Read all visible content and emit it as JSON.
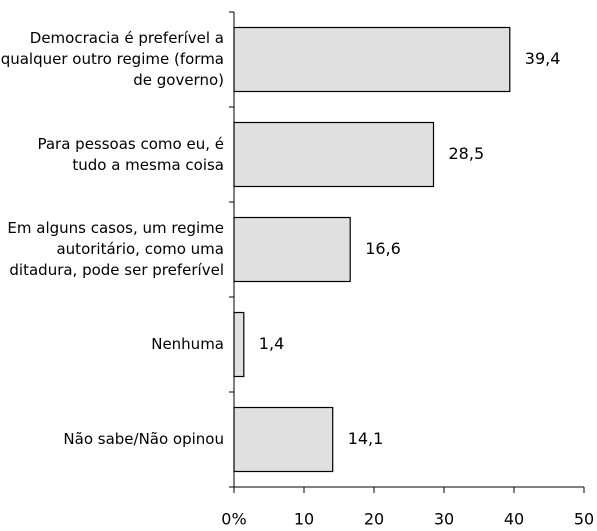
{
  "chart_data": {
    "type": "bar",
    "orientation": "horizontal",
    "categories": [
      "Democracia é preferível a qualquer outro regime (forma de governo)",
      "Para pessoas como eu, é tudo a mesma coisa",
      "Em alguns casos, um regime autoritário, como uma ditadura, pode ser preferível",
      "Nenhuma",
      "Não sabe/Não opinou"
    ],
    "values": [
      39.4,
      28.5,
      16.6,
      1.4,
      14.1
    ],
    "value_labels": [
      "39,4",
      "28,5",
      "16,6",
      "1,4",
      "14,1"
    ],
    "color": "#e0e0e0",
    "xlim": [
      0,
      50
    ],
    "xticks": [
      {
        "value": 0,
        "label": "0%"
      },
      10,
      20,
      30,
      40,
      50
    ]
  }
}
